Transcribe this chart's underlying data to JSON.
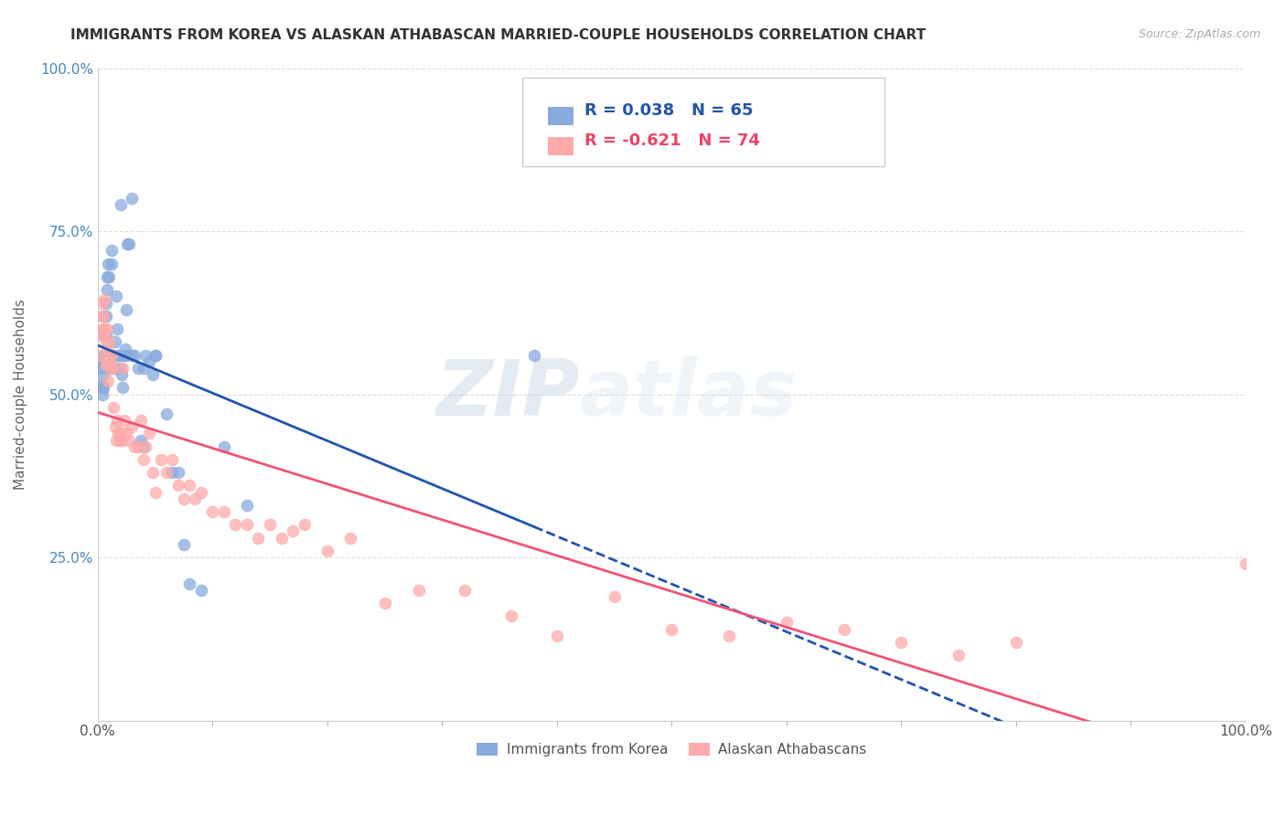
{
  "title": "IMMIGRANTS FROM KOREA VS ALASKAN ATHABASCAN MARRIED-COUPLE HOUSEHOLDS CORRELATION CHART",
  "source": "Source: ZipAtlas.com",
  "ylabel": "Married-couple Households",
  "legend_label_blue": "Immigrants from Korea",
  "legend_label_pink": "Alaskan Athabascans",
  "R_blue": 0.038,
  "N_blue": 65,
  "R_pink": -0.621,
  "N_pink": 74,
  "blue_color": "#88AADD",
  "pink_color": "#FFAAAA",
  "blue_line_color": "#2255AA",
  "pink_line_color": "#EE5577",
  "watermark_zip": "ZIP",
  "watermark_atlas": "atlas",
  "blue_scatter_x": [
    0.2,
    0.3,
    0.3,
    0.4,
    0.4,
    0.5,
    0.5,
    0.5,
    0.5,
    0.6,
    0.6,
    0.6,
    0.7,
    0.7,
    0.7,
    0.8,
    0.8,
    0.9,
    0.9,
    1.0,
    1.0,
    1.1,
    1.1,
    1.2,
    1.2,
    1.3,
    1.4,
    1.4,
    1.5,
    1.5,
    1.6,
    1.7,
    1.8,
    1.9,
    2.0,
    2.1,
    2.2,
    2.3,
    2.4,
    2.5,
    2.6,
    2.7,
    3.0,
    3.2,
    3.5,
    3.8,
    4.0,
    4.2,
    4.5,
    4.8,
    5.0,
    6.0,
    6.5,
    7.0,
    7.5,
    8.0,
    9.0,
    11.0,
    13.0,
    38.0,
    2.0,
    2.5,
    3.0,
    4.0,
    5.0
  ],
  "blue_scatter_y": [
    55.5,
    54.0,
    51.5,
    51.0,
    50.0,
    56.0,
    54.5,
    53.0,
    51.0,
    62.0,
    59.0,
    55.5,
    64.0,
    62.0,
    59.0,
    68.0,
    66.0,
    55.5,
    70.0,
    68.0,
    55.0,
    56.0,
    54.0,
    72.0,
    70.0,
    56.0,
    54.0,
    56.0,
    58.0,
    54.0,
    65.0,
    60.0,
    56.0,
    56.0,
    54.0,
    53.0,
    51.0,
    56.0,
    57.0,
    56.0,
    73.0,
    73.0,
    80.0,
    56.0,
    54.0,
    43.0,
    42.0,
    56.0,
    55.0,
    53.0,
    56.0,
    47.0,
    38.0,
    38.0,
    27.0,
    21.0,
    20.0,
    42.0,
    33.0,
    56.0,
    79.0,
    63.0,
    56.0,
    54.0,
    56.0
  ],
  "pink_scatter_x": [
    0.2,
    0.3,
    0.3,
    0.4,
    0.4,
    0.5,
    0.5,
    0.6,
    0.6,
    0.7,
    0.7,
    0.8,
    0.8,
    0.9,
    0.9,
    1.0,
    1.0,
    1.1,
    1.2,
    1.3,
    1.4,
    1.5,
    1.6,
    1.7,
    1.8,
    1.9,
    2.0,
    2.1,
    2.2,
    2.3,
    2.5,
    2.7,
    3.0,
    3.2,
    3.5,
    3.8,
    4.0,
    4.2,
    4.5,
    4.8,
    5.0,
    5.5,
    6.0,
    6.5,
    7.0,
    7.5,
    8.0,
    8.5,
    9.0,
    10.0,
    11.0,
    12.0,
    13.0,
    14.0,
    15.0,
    16.0,
    17.0,
    18.0,
    20.0,
    22.0,
    25.0,
    28.0,
    32.0,
    36.0,
    40.0,
    45.0,
    50.0,
    55.0,
    60.0,
    65.0,
    70.0,
    75.0,
    80.0,
    100.0
  ],
  "pink_scatter_y": [
    56.0,
    62.0,
    59.0,
    64.0,
    60.0,
    62.0,
    59.0,
    64.5,
    60.0,
    58.0,
    54.5,
    60.0,
    57.0,
    55.0,
    52.0,
    58.0,
    55.0,
    54.0,
    56.0,
    54.0,
    48.0,
    45.0,
    43.0,
    46.0,
    44.0,
    43.0,
    44.0,
    43.0,
    54.0,
    46.0,
    44.0,
    43.0,
    45.0,
    42.0,
    42.0,
    46.0,
    40.0,
    42.0,
    44.0,
    38.0,
    35.0,
    40.0,
    38.0,
    40.0,
    36.0,
    34.0,
    36.0,
    34.0,
    35.0,
    32.0,
    32.0,
    30.0,
    30.0,
    28.0,
    30.0,
    28.0,
    29.0,
    30.0,
    26.0,
    28.0,
    18.0,
    20.0,
    20.0,
    16.0,
    13.0,
    19.0,
    14.0,
    13.0,
    15.0,
    14.0,
    12.0,
    10.0,
    12.0,
    24.0
  ],
  "background_color": "#FFFFFF",
  "grid_color": "#DDDDDD",
  "xlim": [
    0,
    100
  ],
  "ylim": [
    0,
    100
  ],
  "x_ticks": [
    0,
    100
  ],
  "x_tick_labels": [
    "0.0%",
    "100.0%"
  ],
  "y_ticks": [
    0,
    25,
    50,
    75,
    100
  ],
  "y_tick_labels": [
    "",
    "25.0%",
    "50.0%",
    "75.0%",
    "100.0%"
  ]
}
